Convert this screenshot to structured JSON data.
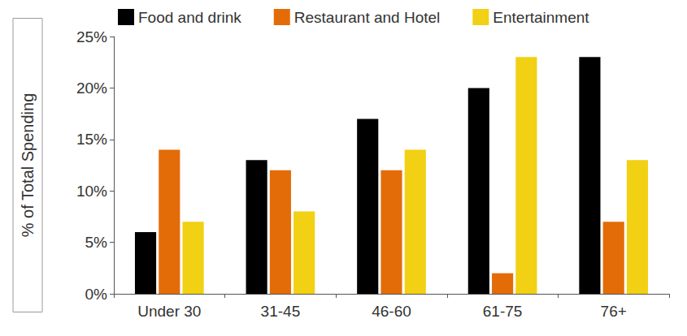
{
  "chart_data": {
    "type": "bar",
    "categories": [
      "Under 30",
      "31-45",
      "46-60",
      "61-75",
      "76+"
    ],
    "series": [
      {
        "name": "Food and drink",
        "color": "#000000",
        "values": [
          6,
          13,
          17,
          20,
          23
        ]
      },
      {
        "name": "Restaurant and Hotel",
        "color": "#e36c09",
        "values": [
          14,
          12,
          12,
          2,
          7
        ]
      },
      {
        "name": "Entertainment",
        "color": "#f2d013",
        "values": [
          7,
          8,
          14,
          23,
          13
        ]
      }
    ],
    "ylabel": "% of Total Spending",
    "ylim": [
      0,
      25
    ],
    "yticks": [
      {
        "value": 0,
        "label": "0%"
      },
      {
        "value": 5,
        "label": "5%"
      },
      {
        "value": 10,
        "label": "10%"
      },
      {
        "value": 15,
        "label": "15%"
      },
      {
        "value": 20,
        "label": "20%"
      },
      {
        "value": 25,
        "label": "25%"
      }
    ],
    "grid": false,
    "legend": "top"
  }
}
